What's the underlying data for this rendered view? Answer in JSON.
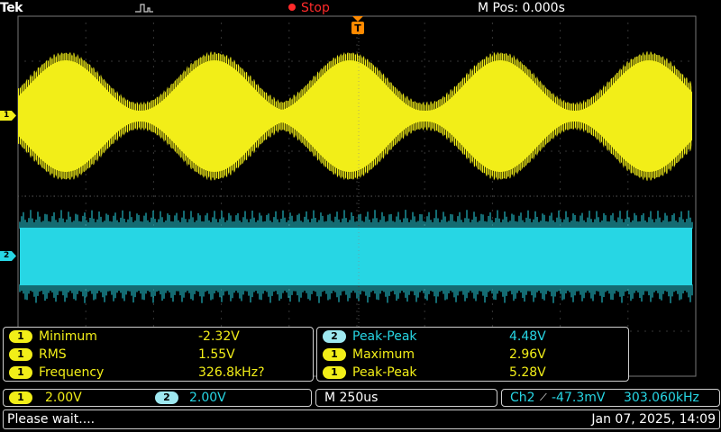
{
  "topbar": {
    "brand": "Tek",
    "run_state": "Stop",
    "mpos_label": "M Pos: 0.000s",
    "trigger_marker": "T"
  },
  "channels": {
    "ch1_marker": "1",
    "ch2_marker": "2",
    "ch1_color": "#f2ee18",
    "ch2_color": "#27d6e4"
  },
  "measurements_left": [
    {
      "channel": "1",
      "label": "Minimum",
      "value": "-2.32V"
    },
    {
      "channel": "1",
      "label": "RMS",
      "value": "1.55V"
    },
    {
      "channel": "1",
      "label": "Frequency",
      "value": "326.8kHz?"
    }
  ],
  "measurements_right": [
    {
      "channel": "2",
      "label": "Peak-Peak",
      "value": "4.48V"
    },
    {
      "channel": "1",
      "label": "Maximum",
      "value": "2.96V"
    },
    {
      "channel": "1",
      "label": "Peak-Peak",
      "value": "5.28V"
    }
  ],
  "scales": {
    "ch1_badge": "1",
    "ch1_scale": "2.00V",
    "ch2_badge": "2",
    "ch2_scale": "2.00V",
    "timebase": "M 250us",
    "trigger_source": "Ch2",
    "trigger_slope_icon": "rising-edge-icon",
    "trigger_slope_glyph": "⟋",
    "trigger_level": "-47.3mV",
    "trigger_freq": "303.060kHz"
  },
  "status": {
    "message": "Please wait....",
    "datetime": "Jan 07, 2025, 14:09"
  }
}
